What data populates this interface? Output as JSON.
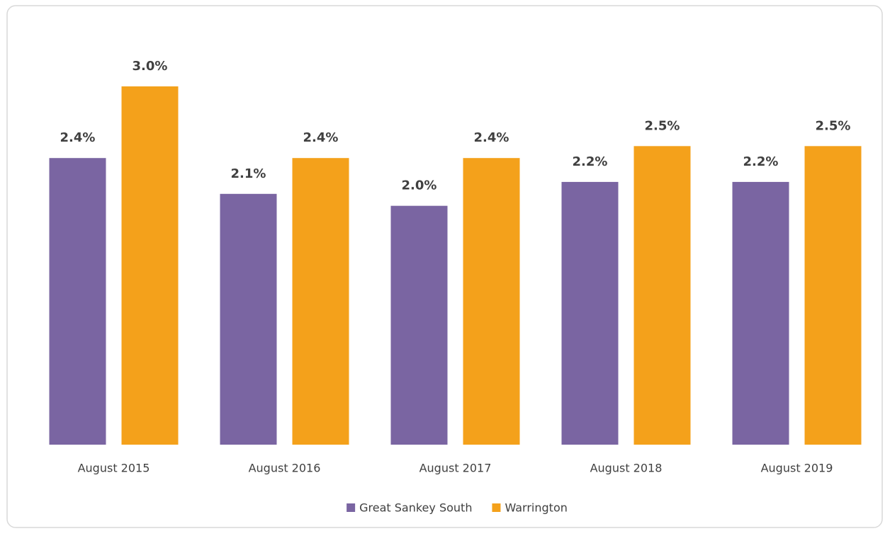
{
  "chart_data": {
    "type": "bar",
    "categories": [
      "August 2015",
      "August 2016",
      "August 2017",
      "August 2018",
      "August 2019"
    ],
    "series": [
      {
        "name": "Great Sankey South",
        "color": "#7a65a2",
        "values": [
          2.4,
          2.1,
          2.0,
          2.2,
          2.2
        ],
        "value_labels": [
          "2.4%",
          "2.1%",
          "2.0%",
          "2.2%",
          "2.2%"
        ]
      },
      {
        "name": "Warrington",
        "color": "#f4a11b",
        "values": [
          3.0,
          2.4,
          2.4,
          2.5,
          2.5
        ],
        "value_labels": [
          "3.0%",
          "2.4%",
          "2.4%",
          "2.5%",
          "2.5%"
        ]
      }
    ],
    "legend": "bottom"
  }
}
